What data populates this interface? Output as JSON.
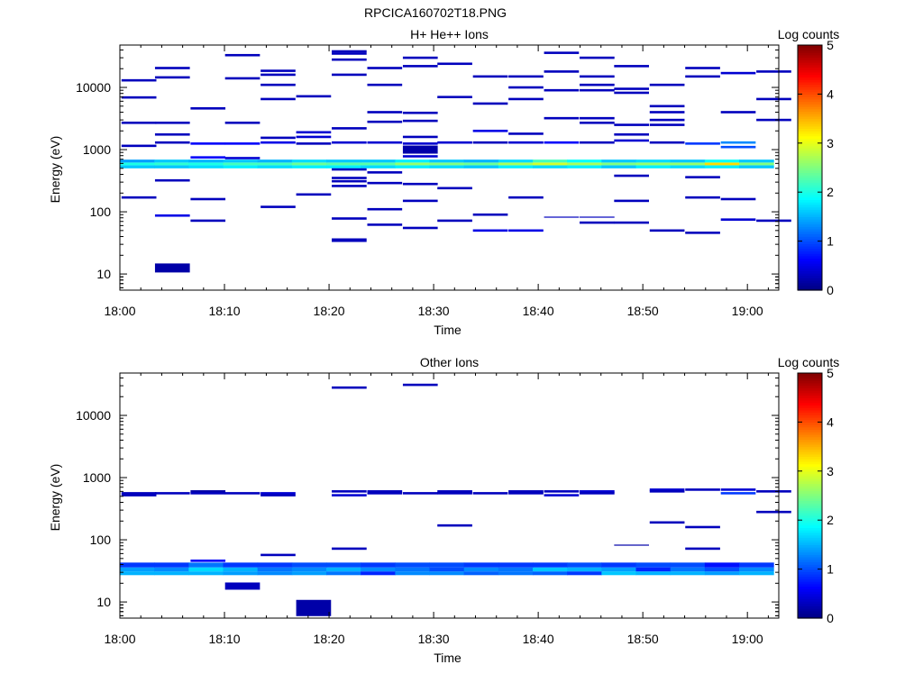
{
  "figure_title": "RPCICA160702T18.PNG",
  "chart_data": [
    {
      "type": "heatmap",
      "title": "H+ He++ Ions",
      "xlabel": "Time",
      "ylabel": "Energy (eV)",
      "x_ticks": [
        "18:00",
        "18:10",
        "18:20",
        "18:30",
        "18:40",
        "18:50",
        "19:00"
      ],
      "x_range_min": [
        0,
        63
      ],
      "y_scale": "log",
      "y_range_ev": [
        5.5,
        48000
      ],
      "y_ticks": [
        {
          "value": 10,
          "label": "10"
        },
        {
          "value": 100,
          "label": "100"
        },
        {
          "value": 1000,
          "label": "1000"
        },
        {
          "value": 10000,
          "label": "10000"
        }
      ],
      "colorbar": {
        "label": "Log counts",
        "range": [
          0,
          5
        ],
        "ticks": [
          "0",
          "1",
          "2",
          "3",
          "4",
          "5"
        ]
      },
      "band": {
        "rows": [
          {
            "e": [
              500,
              560
            ],
            "levels": [
              1.6,
              1.6,
              1.7,
              1.8,
              1.7,
              1.8,
              1.8,
              1.7,
              1.8,
              1.7,
              1.6,
              1.8,
              1.7,
              1.8,
              1.6,
              1.8,
              1.7,
              1.8,
              1.6
            ]
          },
          {
            "e": [
              560,
              620
            ],
            "levels": [
              2.0,
              2.1,
              2.0,
              2.2,
              2.2,
              2.4,
              2.3,
              2.3,
              2.6,
              2.5,
              2.4,
              2.7,
              2.9,
              2.7,
              2.5,
              2.6,
              2.6,
              3.3,
              2.5
            ]
          },
          {
            "e": [
              620,
              690
            ],
            "levels": [
              1.4,
              1.6,
              1.5,
              1.6,
              1.5,
              1.7,
              1.6,
              1.6,
              1.8,
              1.6,
              1.5,
              1.7,
              2.2,
              1.9,
              1.6,
              1.7,
              1.6,
              1.9,
              1.6
            ]
          }
        ]
      },
      "points": [
        {
          "t": 0.2,
          "e": 1150,
          "lvl": 0.3
        },
        {
          "t": 0.2,
          "e": 2700,
          "lvl": 0.3
        },
        {
          "t": 0.2,
          "e": 6900,
          "lvl": 0.3
        },
        {
          "t": 0.2,
          "e": 13000,
          "lvl": 0.3
        },
        {
          "t": 0.2,
          "e": 170,
          "lvl": 0.3
        },
        {
          "t": 3.4,
          "e": 20500,
          "lvl": 0.3
        },
        {
          "t": 3.4,
          "e": 14500,
          "lvl": 0.3
        },
        {
          "t": 3.4,
          "e": 2700,
          "lvl": 0.3
        },
        {
          "t": 3.4,
          "e": 1750,
          "lvl": 0.3
        },
        {
          "t": 3.4,
          "e": 1300,
          "lvl": 0.3
        },
        {
          "t": 3.4,
          "e": 320,
          "lvl": 0.3
        },
        {
          "t": 3.4,
          "e": 87,
          "lvl": 0.5
        },
        {
          "t": 3.4,
          "e": 12.5,
          "lvl": 0.2,
          "thick": 10
        },
        {
          "t": 6.8,
          "e": 4600,
          "lvl": 0.3
        },
        {
          "t": 6.8,
          "e": 1250,
          "lvl": 0.6
        },
        {
          "t": 6.8,
          "e": 750,
          "lvl": 0.6
        },
        {
          "t": 6.8,
          "e": 160,
          "lvl": 0.3
        },
        {
          "t": 6.8,
          "e": 72,
          "lvl": 0.3
        },
        {
          "t": 10.1,
          "e": 33000,
          "lvl": 0.3
        },
        {
          "t": 10.1,
          "e": 14000,
          "lvl": 0.3
        },
        {
          "t": 10.1,
          "e": 2700,
          "lvl": 0.3
        },
        {
          "t": 10.1,
          "e": 1250,
          "lvl": 0.6
        },
        {
          "t": 10.1,
          "e": 730,
          "lvl": 0.4
        },
        {
          "t": 13.5,
          "e": 18500,
          "lvl": 0.3
        },
        {
          "t": 13.5,
          "e": 16000,
          "lvl": 0.3
        },
        {
          "t": 13.5,
          "e": 11000,
          "lvl": 0.3
        },
        {
          "t": 13.5,
          "e": 6500,
          "lvl": 0.3
        },
        {
          "t": 13.5,
          "e": 1550,
          "lvl": 0.3
        },
        {
          "t": 13.5,
          "e": 1300,
          "lvl": 0.5
        },
        {
          "t": 13.5,
          "e": 120,
          "lvl": 0.3
        },
        {
          "t": 16.9,
          "e": 7200,
          "lvl": 0.3
        },
        {
          "t": 16.9,
          "e": 1900,
          "lvl": 0.4
        },
        {
          "t": 16.9,
          "e": 1600,
          "lvl": 0.4
        },
        {
          "t": 16.9,
          "e": 1250,
          "lvl": 0.3
        },
        {
          "t": 16.9,
          "e": 190,
          "lvl": 0.3
        },
        {
          "t": 20.3,
          "e": 38000,
          "lvl": 0.3
        },
        {
          "t": 20.3,
          "e": 35000,
          "lvl": 0.3
        },
        {
          "t": 20.3,
          "e": 28000,
          "lvl": 0.3
        },
        {
          "t": 20.3,
          "e": 16000,
          "lvl": 0.3
        },
        {
          "t": 20.3,
          "e": 2200,
          "lvl": 0.3
        },
        {
          "t": 20.3,
          "e": 1300,
          "lvl": 0.4
        },
        {
          "t": 20.3,
          "e": 480,
          "lvl": 0.3
        },
        {
          "t": 20.3,
          "e": 350,
          "lvl": 0.3
        },
        {
          "t": 20.3,
          "e": 310,
          "lvl": 0.3
        },
        {
          "t": 20.3,
          "e": 260,
          "lvl": 0.3
        },
        {
          "t": 20.3,
          "e": 78,
          "lvl": 0.3
        },
        {
          "t": 20.3,
          "e": 35,
          "lvl": 0.3,
          "thick": 4
        },
        {
          "t": 23.7,
          "e": 20500,
          "lvl": 0.3
        },
        {
          "t": 23.7,
          "e": 11000,
          "lvl": 0.3
        },
        {
          "t": 23.7,
          "e": 4000,
          "lvl": 0.3
        },
        {
          "t": 23.7,
          "e": 2800,
          "lvl": 0.3
        },
        {
          "t": 23.7,
          "e": 1300,
          "lvl": 0.4
        },
        {
          "t": 23.7,
          "e": 430,
          "lvl": 0.3
        },
        {
          "t": 23.7,
          "e": 290,
          "lvl": 0.3
        },
        {
          "t": 23.7,
          "e": 110,
          "lvl": 0.3
        },
        {
          "t": 23.7,
          "e": 62,
          "lvl": 0.3
        },
        {
          "t": 27.1,
          "e": 30000,
          "lvl": 0.3
        },
        {
          "t": 27.1,
          "e": 22000,
          "lvl": 0.3
        },
        {
          "t": 27.1,
          "e": 3900,
          "lvl": 0.3
        },
        {
          "t": 27.1,
          "e": 2900,
          "lvl": 0.3
        },
        {
          "t": 27.1,
          "e": 1600,
          "lvl": 0.3
        },
        {
          "t": 27.1,
          "e": 1250,
          "lvl": 0.4
        },
        {
          "t": 27.1,
          "e": 1000,
          "lvl": 0.2,
          "thick": 9
        },
        {
          "t": 27.1,
          "e": 780,
          "lvl": 0.4
        },
        {
          "t": 27.1,
          "e": 280,
          "lvl": 0.3
        },
        {
          "t": 27.1,
          "e": 150,
          "lvl": 0.3
        },
        {
          "t": 27.1,
          "e": 55,
          "lvl": 0.3
        },
        {
          "t": 30.4,
          "e": 24000,
          "lvl": 0.3
        },
        {
          "t": 30.4,
          "e": 7000,
          "lvl": 0.3
        },
        {
          "t": 30.4,
          "e": 1300,
          "lvl": 0.4
        },
        {
          "t": 30.4,
          "e": 240,
          "lvl": 0.3
        },
        {
          "t": 30.4,
          "e": 72,
          "lvl": 0.3
        },
        {
          "t": 33.8,
          "e": 15000,
          "lvl": 0.3
        },
        {
          "t": 33.8,
          "e": 5500,
          "lvl": 0.3
        },
        {
          "t": 33.8,
          "e": 2000,
          "lvl": 0.5
        },
        {
          "t": 33.8,
          "e": 1300,
          "lvl": 0.3
        },
        {
          "t": 33.8,
          "e": 90,
          "lvl": 0.3
        },
        {
          "t": 33.8,
          "e": 50,
          "lvl": 0.5
        },
        {
          "t": 37.2,
          "e": 15000,
          "lvl": 0.3
        },
        {
          "t": 37.2,
          "e": 10000,
          "lvl": 0.3
        },
        {
          "t": 37.2,
          "e": 6500,
          "lvl": 0.3
        },
        {
          "t": 37.2,
          "e": 1800,
          "lvl": 0.3
        },
        {
          "t": 37.2,
          "e": 1300,
          "lvl": 0.4
        },
        {
          "t": 37.2,
          "e": 170,
          "lvl": 0.3
        },
        {
          "t": 37.2,
          "e": 50,
          "lvl": 0.5
        },
        {
          "t": 40.6,
          "e": 36000,
          "lvl": 0.3
        },
        {
          "t": 40.6,
          "e": 18000,
          "lvl": 0.3
        },
        {
          "t": 40.6,
          "e": 9000,
          "lvl": 0.3
        },
        {
          "t": 40.6,
          "e": 3200,
          "lvl": 0.3
        },
        {
          "t": 40.6,
          "e": 1300,
          "lvl": 0.6
        },
        {
          "t": 40.6,
          "e": 82,
          "lvl": 0.3,
          "thin": true
        },
        {
          "t": 44.0,
          "e": 30000,
          "lvl": 0.3
        },
        {
          "t": 44.0,
          "e": 15000,
          "lvl": 0.3
        },
        {
          "t": 44.0,
          "e": 11000,
          "lvl": 0.3
        },
        {
          "t": 44.0,
          "e": 9000,
          "lvl": 0.3
        },
        {
          "t": 44.0,
          "e": 3200,
          "lvl": 0.3
        },
        {
          "t": 44.0,
          "e": 2700,
          "lvl": 0.3
        },
        {
          "t": 44.0,
          "e": 1300,
          "lvl": 0.3
        },
        {
          "t": 44.0,
          "e": 82,
          "lvl": 0.3,
          "thin": true
        },
        {
          "t": 44.0,
          "e": 67,
          "lvl": 0.3
        },
        {
          "t": 47.3,
          "e": 22000,
          "lvl": 0.3
        },
        {
          "t": 47.3,
          "e": 9500,
          "lvl": 0.3
        },
        {
          "t": 47.3,
          "e": 8200,
          "lvl": 0.3
        },
        {
          "t": 47.3,
          "e": 2500,
          "lvl": 0.3
        },
        {
          "t": 47.3,
          "e": 1750,
          "lvl": 0.3
        },
        {
          "t": 47.3,
          "e": 1400,
          "lvl": 0.4
        },
        {
          "t": 47.3,
          "e": 380,
          "lvl": 0.3
        },
        {
          "t": 47.3,
          "e": 150,
          "lvl": 0.3
        },
        {
          "t": 47.3,
          "e": 67,
          "lvl": 0.3
        },
        {
          "t": 50.7,
          "e": 11000,
          "lvl": 0.3
        },
        {
          "t": 50.7,
          "e": 5000,
          "lvl": 0.3
        },
        {
          "t": 50.7,
          "e": 4000,
          "lvl": 0.3
        },
        {
          "t": 50.7,
          "e": 3000,
          "lvl": 0.3
        },
        {
          "t": 50.7,
          "e": 2500,
          "lvl": 0.3
        },
        {
          "t": 50.7,
          "e": 1300,
          "lvl": 0.3
        },
        {
          "t": 50.7,
          "e": 50,
          "lvl": 0.3
        },
        {
          "t": 54.1,
          "e": 20500,
          "lvl": 0.3
        },
        {
          "t": 54.1,
          "e": 15000,
          "lvl": 0.3
        },
        {
          "t": 54.1,
          "e": 1250,
          "lvl": 0.9
        },
        {
          "t": 54.1,
          "e": 360,
          "lvl": 0.3
        },
        {
          "t": 54.1,
          "e": 170,
          "lvl": 0.3
        },
        {
          "t": 54.1,
          "e": 46,
          "lvl": 0.3
        },
        {
          "t": 57.5,
          "e": 17000,
          "lvl": 0.4
        },
        {
          "t": 57.5,
          "e": 4000,
          "lvl": 0.3
        },
        {
          "t": 57.5,
          "e": 1300,
          "lvl": 1.3
        },
        {
          "t": 57.5,
          "e": 1100,
          "lvl": 1.0
        },
        {
          "t": 57.5,
          "e": 160,
          "lvl": 0.3
        },
        {
          "t": 57.5,
          "e": 75,
          "lvl": 0.4
        },
        {
          "t": 60.9,
          "e": 18000,
          "lvl": 0.3
        },
        {
          "t": 60.9,
          "e": 6500,
          "lvl": 0.3
        },
        {
          "t": 60.9,
          "e": 3000,
          "lvl": 0.3
        },
        {
          "t": 60.9,
          "e": 72,
          "lvl": 0.3
        }
      ]
    },
    {
      "type": "heatmap",
      "title": "Other Ions",
      "xlabel": "Time",
      "ylabel": "Energy (eV)",
      "x_ticks": [
        "18:00",
        "18:10",
        "18:20",
        "18:30",
        "18:40",
        "18:50",
        "19:00"
      ],
      "x_range_min": [
        0,
        63
      ],
      "y_scale": "log",
      "y_range_ev": [
        5.5,
        48000
      ],
      "y_ticks": [
        {
          "value": 10,
          "label": "10"
        },
        {
          "value": 100,
          "label": "100"
        },
        {
          "value": 1000,
          "label": "1000"
        },
        {
          "value": 10000,
          "label": "10000"
        }
      ],
      "colorbar": {
        "label": "Log counts",
        "range": [
          0,
          5
        ],
        "ticks": [
          "0",
          "1",
          "2",
          "3",
          "4",
          "5"
        ]
      },
      "band": {
        "rows": [
          {
            "e": [
              27,
              31
            ],
            "levels": [
              1.5,
              1.5,
              1.5,
              1.4,
              1.3,
              1.4,
              1.2,
              0.8,
              1.3,
              1.3,
              1.1,
              1.2,
              1.1,
              0.9,
              1.6,
              1.5,
              1.5,
              1.4,
              1.5
            ]
          },
          {
            "e": [
              31,
              36
            ],
            "levels": [
              1.4,
              1.3,
              1.7,
              1.5,
              1.2,
              1.3,
              1.5,
              1.3,
              1.2,
              1.0,
              1.3,
              1.2,
              1.6,
              1.5,
              1.4,
              0.8,
              1.2,
              1.0,
              1.3
            ]
          },
          {
            "e": [
              36,
              43
            ],
            "levels": [
              0.9,
              0.9,
              1.2,
              0.9,
              0.9,
              1.0,
              1.0,
              0.9,
              1.0,
              1.0,
              0.9,
              0.9,
              0.9,
              1.0,
              0.9,
              1.0,
              1.0,
              0.7,
              0.9
            ]
          }
        ]
      },
      "points": [
        {
          "t": 0.2,
          "e": 520,
          "lvl": 0.3
        },
        {
          "t": 0.2,
          "e": 560,
          "lvl": 0.3
        },
        {
          "t": 3.4,
          "e": 560,
          "lvl": 0.3
        },
        {
          "t": 6.8,
          "e": 600,
          "lvl": 0.2
        },
        {
          "t": 6.8,
          "e": 560,
          "lvl": 0.3
        },
        {
          "t": 6.8,
          "e": 46,
          "lvl": 0.6
        },
        {
          "t": 10.1,
          "e": 560,
          "lvl": 0.3
        },
        {
          "t": 10.1,
          "e": 18,
          "lvl": 0.3,
          "thick": 8
        },
        {
          "t": 13.5,
          "e": 560,
          "lvl": 0.4
        },
        {
          "t": 13.5,
          "e": 520,
          "lvl": 0.3
        },
        {
          "t": 13.5,
          "e": 57,
          "lvl": 0.3
        },
        {
          "t": 16.9,
          "e": 8,
          "lvl": 0.2,
          "thick": 18
        },
        {
          "t": 20.3,
          "e": 28000,
          "lvl": 0.3
        },
        {
          "t": 20.3,
          "e": 600,
          "lvl": 0.3
        },
        {
          "t": 20.3,
          "e": 520,
          "lvl": 0.4
        },
        {
          "t": 20.3,
          "e": 72,
          "lvl": 0.3
        },
        {
          "t": 23.7,
          "e": 600,
          "lvl": 0.3
        },
        {
          "t": 23.7,
          "e": 560,
          "lvl": 0.3
        },
        {
          "t": 27.1,
          "e": 31000,
          "lvl": 0.3
        },
        {
          "t": 27.1,
          "e": 560,
          "lvl": 0.3
        },
        {
          "t": 30.4,
          "e": 600,
          "lvl": 0.3
        },
        {
          "t": 30.4,
          "e": 560,
          "lvl": 0.3
        },
        {
          "t": 30.4,
          "e": 170,
          "lvl": 0.3
        },
        {
          "t": 33.8,
          "e": 560,
          "lvl": 0.3
        },
        {
          "t": 37.2,
          "e": 600,
          "lvl": 0.3
        },
        {
          "t": 37.2,
          "e": 560,
          "lvl": 0.3
        },
        {
          "t": 40.6,
          "e": 600,
          "lvl": 0.3
        },
        {
          "t": 40.6,
          "e": 520,
          "lvl": 0.4
        },
        {
          "t": 44.0,
          "e": 600,
          "lvl": 0.4
        },
        {
          "t": 44.0,
          "e": 560,
          "lvl": 0.3
        },
        {
          "t": 47.3,
          "e": 82,
          "lvl": 0.2,
          "thin": true
        },
        {
          "t": 50.7,
          "e": 640,
          "lvl": 0.4
        },
        {
          "t": 50.7,
          "e": 600,
          "lvl": 0.3
        },
        {
          "t": 50.7,
          "e": 190,
          "lvl": 0.3
        },
        {
          "t": 54.1,
          "e": 640,
          "lvl": 0.3
        },
        {
          "t": 54.1,
          "e": 160,
          "lvl": 0.3
        },
        {
          "t": 54.1,
          "e": 72,
          "lvl": 0.3
        },
        {
          "t": 57.5,
          "e": 640,
          "lvl": 0.4
        },
        {
          "t": 57.5,
          "e": 560,
          "lvl": 0.9
        },
        {
          "t": 60.9,
          "e": 600,
          "lvl": 0.3
        },
        {
          "t": 60.9,
          "e": 280,
          "lvl": 0.3
        }
      ]
    }
  ]
}
